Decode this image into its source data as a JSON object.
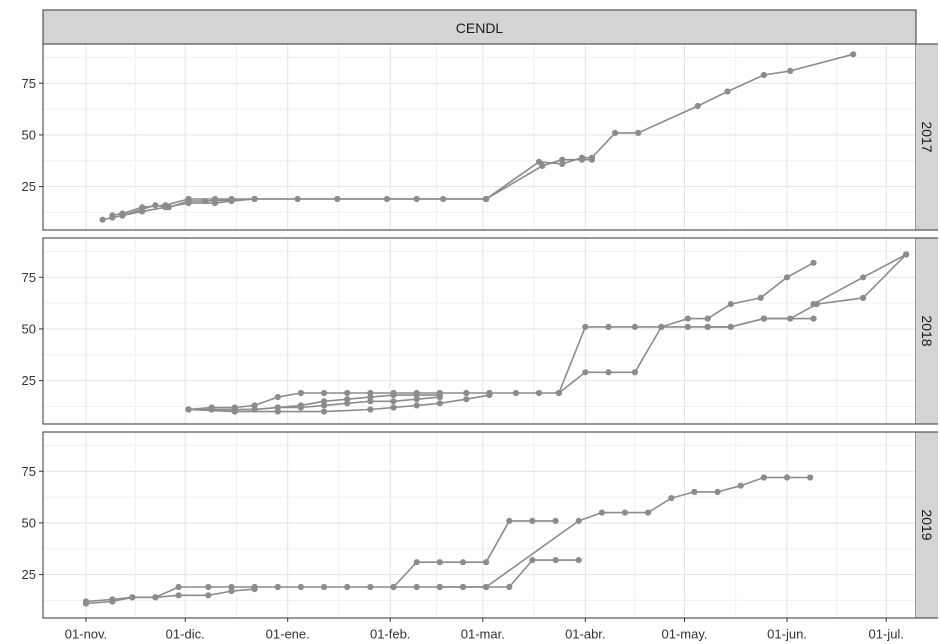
{
  "chart_data": {
    "type": "line",
    "title": "CENDL",
    "facet_labels": [
      "2017",
      "2018",
      "2019"
    ],
    "x_ticks": [
      "01-nov.",
      "01-dic.",
      "01-ene.",
      "01-feb.",
      "01-mar.",
      "01-abr.",
      "01-may.",
      "01-jun.",
      "01-jul."
    ],
    "y_ticks": [
      25,
      50,
      75
    ],
    "ylim": [
      4,
      94
    ],
    "xlim_days": [
      -13,
      251
    ],
    "grid": true,
    "line_color": "#8c8c8c",
    "panel_background": "#ffffff",
    "strip_background": "#d4d4d4",
    "panels": [
      {
        "label": "2017",
        "series": [
          {
            "x": [
              5,
              8,
              11,
              17,
              24,
              31,
              39,
              44,
              51
            ],
            "y": [
              9,
              10,
              11,
              13,
              15,
              17,
              17,
              18,
              19
            ]
          },
          {
            "x": [
              8,
              11,
              17,
              24,
              31,
              39,
              44,
              51,
              64,
              76,
              91,
              100,
              108,
              121
            ],
            "y": [
              11,
              12,
              15,
              16,
              19,
              19,
              19,
              19,
              19,
              19,
              19,
              19,
              19,
              19
            ]
          },
          {
            "x": [
              11,
              21,
              25,
              31,
              36,
              51,
              121,
              138,
              144,
              150,
              153
            ],
            "y": [
              11,
              16,
              15,
              18,
              18,
              19,
              19,
              35,
              38,
              38,
              38
            ]
          },
          {
            "x": [
              121,
              137,
              144,
              150,
              153,
              160,
              167,
              185,
              194,
              205,
              213,
              232
            ],
            "y": [
              19,
              37,
              36,
              39,
              39,
              51,
              51,
              64,
              71,
              79,
              81,
              89
            ]
          }
        ]
      },
      {
        "label": "2018",
        "series": [
          {
            "x": [
              31,
              38,
              45,
              51,
              58,
              65,
              72,
              79,
              86,
              93,
              100,
              107
            ],
            "y": [
              11,
              11,
              11,
              11,
              12,
              13,
              15,
              16,
              17,
              18,
              18,
              18
            ]
          },
          {
            "x": [
              31,
              38,
              45,
              51,
              58,
              65,
              72,
              79,
              86,
              93,
              100,
              107,
              115,
              122
            ],
            "y": [
              11,
              12,
              12,
              13,
              17,
              19,
              19,
              19,
              19,
              19,
              19,
              19,
              19,
              19
            ]
          },
          {
            "x": [
              38,
              45,
              51,
              58,
              65,
              72,
              79,
              86,
              93,
              100,
              107
            ],
            "y": [
              11,
              11,
              11,
              12,
              12,
              13,
              14,
              15,
              15,
              16,
              17
            ]
          },
          {
            "x": [
              31,
              45,
              58,
              72,
              86,
              93,
              100,
              107,
              115,
              122
            ],
            "y": [
              11,
              10,
              10,
              10,
              11,
              12,
              13,
              14,
              16,
              18
            ]
          },
          {
            "x": [
              122,
              130,
              137,
              143,
              151,
              158,
              166,
              174,
              182,
              188,
              195,
              204,
              212,
              220
            ],
            "y": [
              19,
              19,
              19,
              19,
              51,
              51,
              51,
              51,
              55,
              55,
              62,
              65,
              75,
              82
            ]
          },
          {
            "x": [
              143,
              151,
              158,
              166,
              174,
              182,
              188,
              195,
              205,
              220
            ],
            "y": [
              19,
              29,
              29,
              29,
              51,
              51,
              51,
              51,
              55,
              55
            ]
          },
          {
            "x": [
              188,
              195,
              205,
              213,
              221,
              235,
              248
            ],
            "y": [
              51,
              51,
              55,
              55,
              62,
              65,
              86
            ]
          },
          {
            "x": [
              220,
              235,
              248
            ],
            "y": [
              62,
              75,
              86
            ]
          }
        ]
      },
      {
        "label": "2019",
        "series": [
          {
            "x": [
              0,
              8,
              14,
              21,
              28,
              37,
              44,
              51,
              58,
              65,
              72,
              79,
              86,
              93,
              100,
              107,
              114,
              121
            ],
            "y": [
              11,
              12,
              14,
              14,
              19,
              19,
              19,
              19,
              19,
              19,
              19,
              19,
              19,
              19,
              19,
              19,
              19,
              19
            ]
          },
          {
            "x": [
              0,
              8,
              14,
              21,
              28,
              37,
              44,
              51
            ],
            "y": [
              12,
              13,
              14,
              14,
              15,
              15,
              17,
              18
            ]
          },
          {
            "x": [
              93,
              100,
              107,
              114,
              121,
              128,
              135,
              142
            ],
            "y": [
              19,
              31,
              31,
              31,
              31,
              51,
              51,
              51
            ]
          },
          {
            "x": [
              107,
              114,
              121,
              128,
              135,
              142,
              149
            ],
            "y": [
              19,
              19,
              19,
              19,
              32,
              32,
              32
            ]
          },
          {
            "x": [
              121,
              149,
              156,
              163,
              170,
              177,
              184,
              191,
              198,
              205,
              212,
              219
            ],
            "y": [
              19,
              51,
              55,
              55,
              55,
              62,
              65,
              65,
              68,
              72,
              72,
              72
            ]
          }
        ]
      }
    ]
  }
}
